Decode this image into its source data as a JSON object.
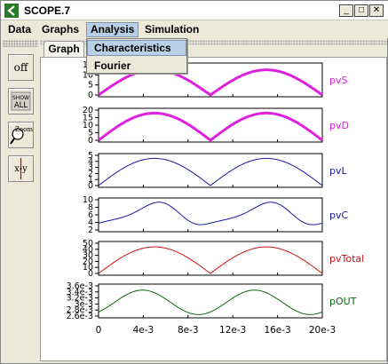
{
  "window": {
    "title": "SCOPE.7",
    "controls": [
      "minimize",
      "maximize",
      "close"
    ]
  },
  "menubar": {
    "items": [
      "Data",
      "Graphs",
      "Analysis",
      "Simulation"
    ],
    "active": "Analysis"
  },
  "dropdown": {
    "items": [
      "Characteristics",
      "Fourier"
    ],
    "highlighted": "Characteristics"
  },
  "toolbar": {
    "off_label": "off",
    "show_all_label": "SHOW\nALL",
    "zoom_label": "Zoom",
    "xy_label": "x-y"
  },
  "tab": {
    "label": "Graph"
  },
  "chart_data": {
    "type": "line",
    "x_ticks": [
      "0",
      "4e-3",
      "8e-3",
      "12e-3",
      "16e-3",
      "20e-3"
    ],
    "x_range": [
      0,
      0.02
    ],
    "plots": [
      {
        "name": "pvS",
        "color": "#e020e0",
        "yticks": [
          "15",
          "10",
          "5",
          "0"
        ],
        "ylim": [
          0,
          15
        ],
        "shape": "halfsine",
        "amp": 12.5,
        "thick": 3
      },
      {
        "name": "pvD",
        "color": "#e020e0",
        "yticks": [
          "20",
          "15",
          "10",
          "5",
          "0"
        ],
        "ylim": [
          0,
          20
        ],
        "shape": "halfsine",
        "amp": 18,
        "thick": 3
      },
      {
        "name": "pvL",
        "color": "#1a1aaa",
        "yticks": [
          "5",
          "4",
          "3",
          "2",
          "1",
          "0"
        ],
        "ylim": [
          0,
          5
        ],
        "shape": "halfsine",
        "amp": 4.5,
        "thick": 1
      },
      {
        "name": "pvC",
        "color": "#1a1aaa",
        "yticks": [
          "10",
          "8",
          "6",
          "4",
          "2"
        ],
        "ylim": [
          2,
          10
        ],
        "shape": "cap",
        "amp": 9.2,
        "thick": 1
      },
      {
        "name": "pvTotal",
        "color": "#cc1111",
        "yticks": [
          "50",
          "40",
          "30",
          "20",
          "10",
          "0"
        ],
        "ylim": [
          0,
          50
        ],
        "shape": "halfsine",
        "amp": 44,
        "thick": 1
      },
      {
        "name": "pOUT",
        "color": "#0a6a0a",
        "yticks": [
          "3.6e-3",
          "3.4e-3",
          "3.2e-3",
          "3e-3",
          "2.8e-3",
          "2.6e-3"
        ],
        "ylim": [
          0.0026,
          0.0036
        ],
        "shape": "out",
        "amp": 0.0035,
        "thick": 1
      }
    ]
  }
}
